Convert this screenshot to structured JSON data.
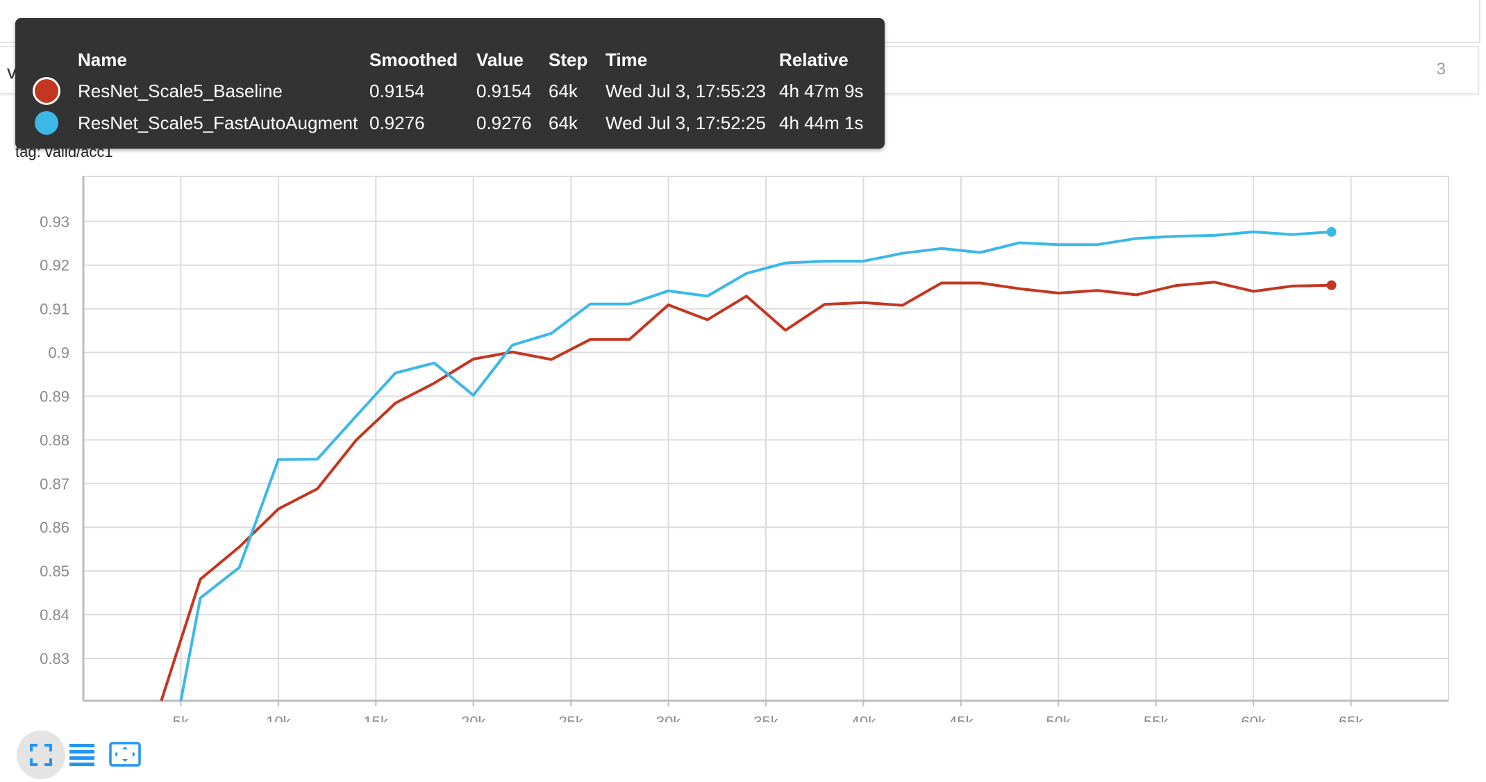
{
  "header": {
    "group_name": "valid",
    "group_count": "3"
  },
  "card": {
    "title": "acc1",
    "tag": "tag: valid/acc1"
  },
  "colors": {
    "baseline": "#c33721",
    "fastautoaugment": "#3cb8e8",
    "grid": "#dcdcdc",
    "icon": "#2196f3"
  },
  "icons": {
    "expand": "fullscreen-icon",
    "list": "list-icon",
    "fit": "fit-domain-icon"
  },
  "tooltip": {
    "headers": [
      "Name",
      "Smoothed",
      "Value",
      "Step",
      "Time",
      "Relative"
    ],
    "rows": [
      {
        "name": "ResNet_Scale5_Baseline",
        "smoothed": "0.9154",
        "value": "0.9154",
        "step": "64k",
        "time": "Wed Jul 3, 17:55:23",
        "relative": "4h 47m 9s",
        "color": "#c33721"
      },
      {
        "name": "ResNet_Scale5_FastAutoAugment",
        "smoothed": "0.9276",
        "value": "0.9276",
        "step": "64k",
        "time": "Wed Jul 3, 17:52:25",
        "relative": "4h 44m 1s",
        "color": "#3cb8e8"
      }
    ]
  },
  "chart_data": {
    "type": "line",
    "title": "acc1",
    "xlabel": "",
    "ylabel": "",
    "xlim": [
      0,
      70000
    ],
    "ylim": [
      0.8203,
      0.9403
    ],
    "x_ticks": [
      5000,
      10000,
      15000,
      20000,
      25000,
      30000,
      35000,
      40000,
      45000,
      50000,
      55000,
      60000,
      65000
    ],
    "x_tick_labels": [
      "5k",
      "10k",
      "15k",
      "20k",
      "25k",
      "30k",
      "35k",
      "40k",
      "45k",
      "50k",
      "55k",
      "60k",
      "65k"
    ],
    "y_ticks": [
      0.83,
      0.84,
      0.85,
      0.86,
      0.87,
      0.88,
      0.89,
      0.9,
      0.91,
      0.92,
      0.93
    ],
    "y_tick_labels": [
      "0.83",
      "0.84",
      "0.85",
      "0.86",
      "0.87",
      "0.88",
      "0.89",
      "0.9",
      "0.91",
      "0.92",
      "0.93"
    ],
    "grid": true,
    "series": [
      {
        "name": "ResNet_Scale5_Baseline",
        "color": "#c33721",
        "x": [
          4000,
          6000,
          8000,
          10000,
          12000,
          14000,
          16000,
          18000,
          20000,
          22000,
          24000,
          26000,
          28000,
          30000,
          32000,
          34000,
          36000,
          38000,
          40000,
          42000,
          44000,
          46000,
          48000,
          50000,
          52000,
          54000,
          56000,
          58000,
          60000,
          62000,
          64000
        ],
        "y": [
          0.8203,
          0.8481,
          0.8555,
          0.8642,
          0.8688,
          0.88,
          0.8884,
          0.893,
          0.8985,
          0.9001,
          0.8984,
          0.903,
          0.903,
          0.9109,
          0.9075,
          0.9129,
          0.9051,
          0.911,
          0.9114,
          0.9108,
          0.9159,
          0.9159,
          0.9146,
          0.9136,
          0.9142,
          0.9132,
          0.9153,
          0.9161,
          0.914,
          0.9152,
          0.9154
        ]
      },
      {
        "name": "ResNet_Scale5_FastAutoAugment",
        "color": "#3cb8e8",
        "x": [
          5000,
          6000,
          8000,
          10000,
          12000,
          14000,
          16000,
          18000,
          20000,
          22000,
          24000,
          26000,
          28000,
          30000,
          32000,
          34000,
          36000,
          38000,
          40000,
          42000,
          44000,
          46000,
          48000,
          50000,
          52000,
          54000,
          56000,
          58000,
          60000,
          62000,
          64000
        ],
        "y": [
          0.8203,
          0.8438,
          0.8508,
          0.8755,
          0.8756,
          0.8855,
          0.8953,
          0.8976,
          0.8902,
          0.9017,
          0.9044,
          0.9111,
          0.9111,
          0.9141,
          0.9129,
          0.9181,
          0.9205,
          0.9209,
          0.9209,
          0.9227,
          0.9238,
          0.9229,
          0.9251,
          0.9247,
          0.9247,
          0.9261,
          0.9266,
          0.9268,
          0.9276,
          0.927,
          0.9276
        ]
      }
    ]
  }
}
